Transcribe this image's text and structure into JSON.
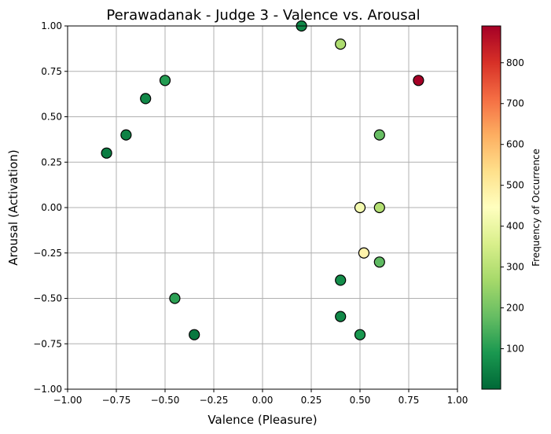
{
  "chart_data": {
    "type": "scatter",
    "title": "Perawadanak - Judge 3 - Valence vs. Arousal",
    "xlabel": "Valence (Pleasure)",
    "ylabel": "Arousal (Activation)",
    "xlim": [
      -1.0,
      1.0
    ],
    "ylim": [
      -1.0,
      1.0
    ],
    "x_ticks": [
      "−1.00",
      "−0.75",
      "−0.50",
      "−0.25",
      "0.00",
      "0.25",
      "0.50",
      "0.75",
      "1.00"
    ],
    "y_ticks": [
      "−1.00",
      "−0.75",
      "−0.50",
      "−0.25",
      "0.00",
      "0.25",
      "0.50",
      "0.75",
      "1.00"
    ],
    "grid": true,
    "colormap": "RdYlGn_r",
    "colorbar": {
      "label": "Frequency of Occurrence",
      "range": [
        1,
        890
      ],
      "ticks": [
        "100",
        "200",
        "300",
        "400",
        "500",
        "600",
        "700",
        "800"
      ]
    },
    "points": [
      {
        "x": 0.2,
        "y": 1.0,
        "frequency": 60
      },
      {
        "x": 0.4,
        "y": 0.9,
        "frequency": 280
      },
      {
        "x": -0.5,
        "y": 0.7,
        "frequency": 100
      },
      {
        "x": 0.8,
        "y": 0.7,
        "frequency": 890
      },
      {
        "x": -0.6,
        "y": 0.6,
        "frequency": 60
      },
      {
        "x": 0.6,
        "y": 0.4,
        "frequency": 180
      },
      {
        "x": -0.7,
        "y": 0.4,
        "frequency": 50
      },
      {
        "x": -0.8,
        "y": 0.3,
        "frequency": 40
      },
      {
        "x": 0.5,
        "y": 0.0,
        "frequency": 420
      },
      {
        "x": 0.6,
        "y": 0.0,
        "frequency": 290
      },
      {
        "x": 0.52,
        "y": -0.25,
        "frequency": 480
      },
      {
        "x": 0.6,
        "y": -0.3,
        "frequency": 170
      },
      {
        "x": 0.4,
        "y": -0.4,
        "frequency": 70
      },
      {
        "x": -0.45,
        "y": -0.5,
        "frequency": 110
      },
      {
        "x": 0.4,
        "y": -0.6,
        "frequency": 60
      },
      {
        "x": 0.5,
        "y": -0.7,
        "frequency": 90
      },
      {
        "x": -0.35,
        "y": -0.7,
        "frequency": 30
      }
    ]
  }
}
